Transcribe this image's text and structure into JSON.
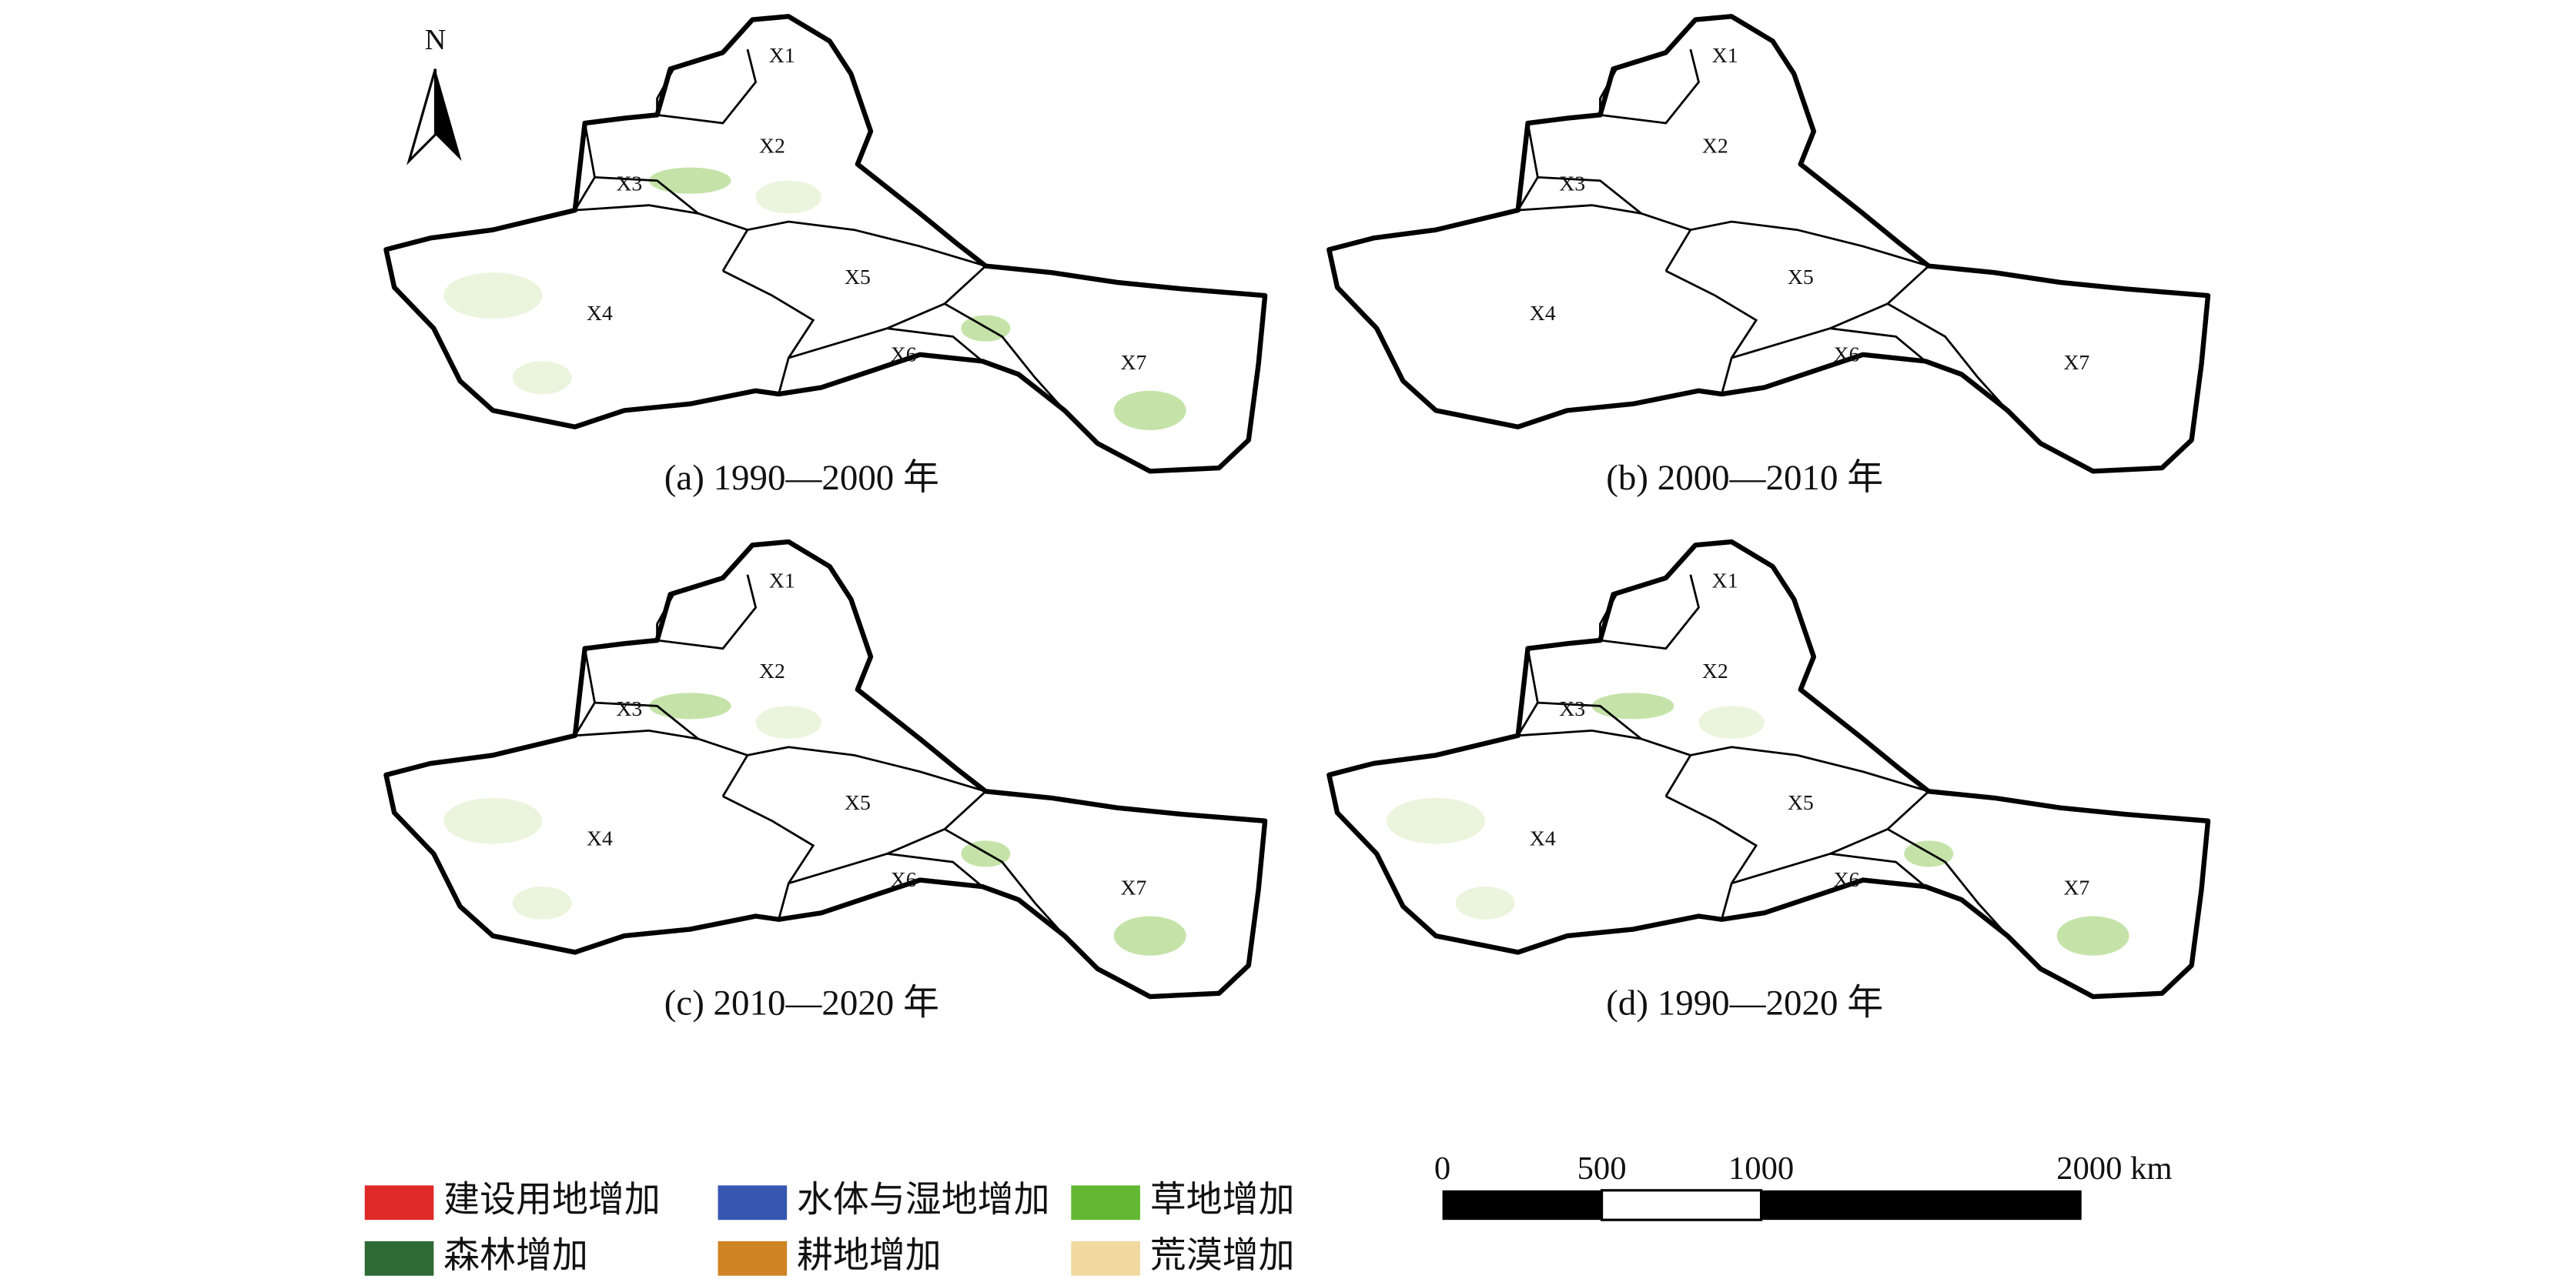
{
  "north_label": "N",
  "region_labels": [
    "X1",
    "X2",
    "X3",
    "X4",
    "X5",
    "X6",
    "X7"
  ],
  "panels": [
    {
      "caption": "(a) 1990—2000 年"
    },
    {
      "caption": "(b) 2000—2010 年"
    },
    {
      "caption": "(c) 2010—2020 年"
    },
    {
      "caption": "(d) 1990—2020 年"
    }
  ],
  "legend": [
    {
      "label": "建设用地增加",
      "color": "#e02a2a"
    },
    {
      "label": "水体与湿地增加",
      "color": "#3656b0"
    },
    {
      "label": "草地增加",
      "color": "#62b832"
    },
    {
      "label": "森林增加",
      "color": "#2e6a34"
    },
    {
      "label": "耕地增加",
      "color": "#cf8424"
    },
    {
      "label": "荒漠增加",
      "color": "#f1d9a0"
    }
  ],
  "scale_bar": {
    "labels": [
      "0",
      "500",
      "1000",
      "2000 km"
    ]
  }
}
